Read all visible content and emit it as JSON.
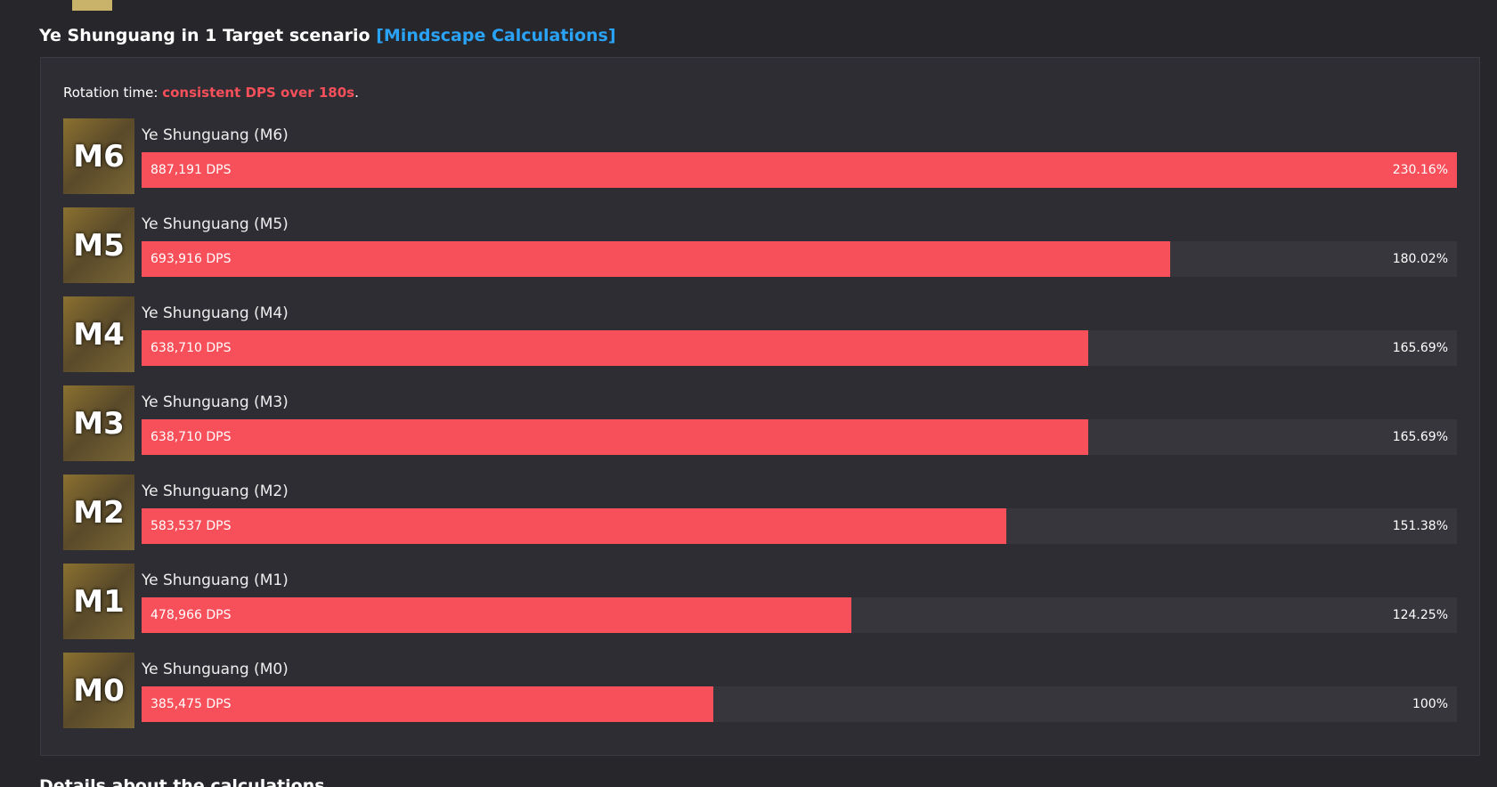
{
  "header": {
    "title": "Ye Shunguang in 1 Target scenario",
    "link": "[Mindscape Calculations]"
  },
  "rotation": {
    "prefix": "Rotation time: ",
    "highlight": "consistent DPS over 180s",
    "suffix": "."
  },
  "chart_data": {
    "type": "bar",
    "orientation": "horizontal",
    "categories": [
      "Ye Shunguang (M6)",
      "Ye Shunguang (M5)",
      "Ye Shunguang (M4)",
      "Ye Shunguang (M3)",
      "Ye Shunguang (M2)",
      "Ye Shunguang (M1)",
      "Ye Shunguang (M0)"
    ],
    "icons": [
      "M6",
      "M5",
      "M4",
      "M3",
      "M2",
      "M1",
      "M0"
    ],
    "values": [
      887191,
      693916,
      638710,
      638710,
      583537,
      478966,
      385475
    ],
    "value_labels": [
      "887,191 DPS",
      "693,916 DPS",
      "638,710 DPS",
      "638,710 DPS",
      "583,537 DPS",
      "478,966 DPS",
      "385,475 DPS"
    ],
    "relative_labels": [
      "230.16%",
      "180.02%",
      "165.69%",
      "165.69%",
      "151.38%",
      "124.25%",
      "100%"
    ],
    "color": "#f7505a",
    "xlim": [
      0,
      887191
    ]
  },
  "footer": {
    "heading": "Details about the calculations"
  }
}
